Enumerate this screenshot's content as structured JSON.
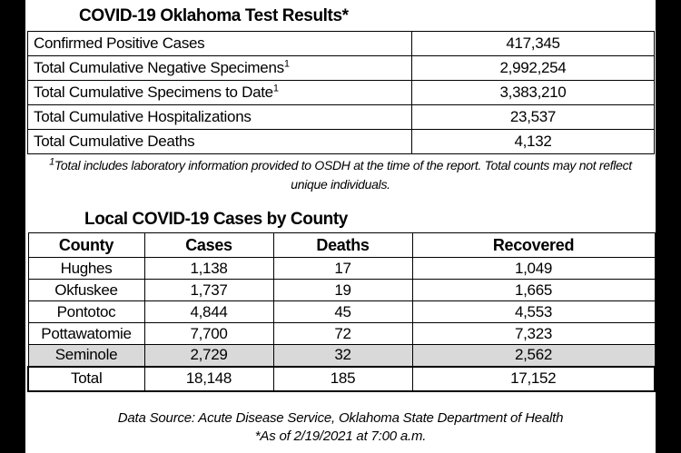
{
  "header": {
    "title": "COVID-19 Oklahoma Test Results*"
  },
  "test_table": {
    "rows": [
      {
        "label": "Confirmed Positive Cases",
        "value": "417,345"
      },
      {
        "label": "Total Cumulative Negative Specimens",
        "note": "1",
        "value": "2,992,254"
      },
      {
        "label": "Total Cumulative Specimens to Date",
        "note": "1",
        "value": "3,383,210"
      },
      {
        "label": "Total Cumulative Hospitalizations",
        "value": "23,537"
      },
      {
        "label": "Total Cumulative Deaths",
        "value": "4,132"
      }
    ]
  },
  "footnote": {
    "marker": "1",
    "lines": [
      "Total includes laboratory information provided to OSDH at the time of the report. Total counts may not reflect",
      "unique individuals."
    ]
  },
  "county_section": {
    "title": "Local COVID-19 Cases by County"
  },
  "county_table": {
    "columns": [
      "County",
      "Cases",
      "Deaths",
      "Recovered"
    ],
    "rows": [
      [
        "Hughes",
        "1,138",
        "17",
        "1,049"
      ],
      [
        "Okfuskee",
        "1,737",
        "19",
        "1,665"
      ],
      [
        "Pontotoc",
        "4,844",
        "45",
        "4,553"
      ],
      [
        "Pottawatomie",
        "7,700",
        "72",
        "7,323"
      ],
      [
        "Seminole",
        "2,729",
        "32",
        "2,562"
      ]
    ],
    "total": [
      "Total",
      "18,148",
      "185",
      "17,152"
    ]
  },
  "source": {
    "lines": [
      "Data Source: Acute Disease Service, Oklahoma State Department of Health",
      "*As of 2/19/2021 at 7:00 a.m."
    ]
  }
}
